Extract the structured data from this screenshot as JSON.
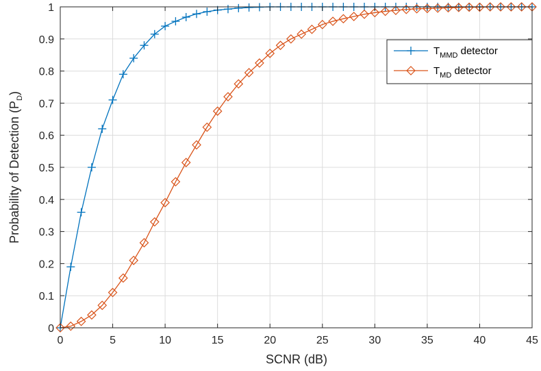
{
  "chart_data": {
    "type": "line",
    "xlabel": "SCNR (dB)",
    "ylabel_main": "Probability of Detection (P",
    "ylabel_sub": "D",
    "ylabel_tail": ")",
    "xlim": [
      0,
      45
    ],
    "ylim": [
      0,
      1
    ],
    "xticks": [
      0,
      5,
      10,
      15,
      20,
      25,
      30,
      35,
      40,
      45
    ],
    "yticks": [
      0,
      0.1,
      0.2,
      0.3,
      0.4,
      0.5,
      0.6,
      0.7,
      0.8,
      0.9,
      1
    ],
    "xtick_labels": [
      "0",
      "5",
      "10",
      "15",
      "20",
      "25",
      "30",
      "35",
      "40",
      "45"
    ],
    "ytick_labels": [
      "0",
      "0.1",
      "0.2",
      "0.3",
      "0.4",
      "0.5",
      "0.6",
      "0.7",
      "0.8",
      "0.9",
      "1"
    ],
    "grid": true,
    "legend_position": "top-right",
    "series": [
      {
        "legend_main": "T",
        "legend_sub": "MMD",
        "legend_tail": " detector",
        "color": "#0072BD",
        "marker": "plus",
        "x": [
          0,
          1,
          2,
          3,
          4,
          5,
          6,
          7,
          8,
          9,
          10,
          11,
          12,
          13,
          14,
          15,
          16,
          17,
          18,
          19,
          20,
          21,
          22,
          23,
          24,
          25,
          26,
          27,
          28,
          29,
          30,
          31,
          32,
          33,
          34,
          35,
          36,
          37,
          38,
          39,
          40,
          41,
          42,
          43,
          44,
          45
        ],
        "y": [
          0,
          0.19,
          0.36,
          0.5,
          0.62,
          0.71,
          0.79,
          0.84,
          0.88,
          0.915,
          0.94,
          0.955,
          0.968,
          0.978,
          0.985,
          0.99,
          0.993,
          0.996,
          0.998,
          0.999,
          1,
          1,
          1,
          1,
          1,
          1,
          1,
          1,
          1,
          1,
          1,
          1,
          1,
          1,
          1,
          1,
          1,
          1,
          1,
          1,
          1,
          1,
          1,
          1,
          1,
          1
        ]
      },
      {
        "legend_main": "T",
        "legend_sub": "MD",
        "legend_tail": " detector",
        "color": "#D95319",
        "marker": "diamond",
        "x": [
          0,
          1,
          2,
          3,
          4,
          5,
          6,
          7,
          8,
          9,
          10,
          11,
          12,
          13,
          14,
          15,
          16,
          17,
          18,
          19,
          20,
          21,
          22,
          23,
          24,
          25,
          26,
          27,
          28,
          29,
          30,
          31,
          32,
          33,
          34,
          35,
          36,
          37,
          38,
          39,
          40,
          41,
          42,
          43,
          44,
          45
        ],
        "y": [
          0,
          0.005,
          0.02,
          0.04,
          0.07,
          0.11,
          0.155,
          0.21,
          0.265,
          0.33,
          0.39,
          0.455,
          0.515,
          0.57,
          0.625,
          0.675,
          0.72,
          0.76,
          0.795,
          0.825,
          0.855,
          0.88,
          0.9,
          0.915,
          0.93,
          0.945,
          0.955,
          0.963,
          0.97,
          0.977,
          0.982,
          0.986,
          0.989,
          0.992,
          0.994,
          0.995,
          0.996,
          0.997,
          0.998,
          0.999,
          0.999,
          1,
          1,
          1,
          1,
          1
        ]
      }
    ]
  }
}
